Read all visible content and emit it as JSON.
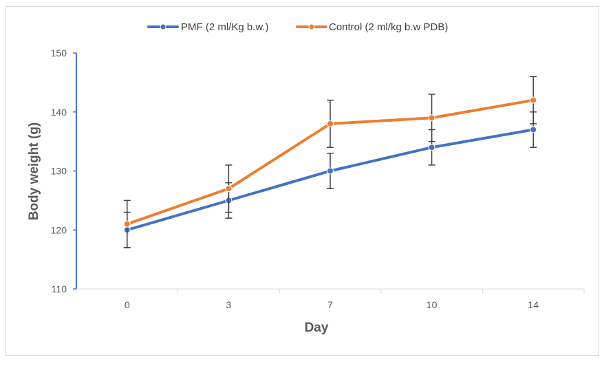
{
  "chart_data": {
    "type": "line",
    "title": "",
    "xlabel": "Day",
    "ylabel": "Body weight (g)",
    "categories": [
      "0",
      "3",
      "7",
      "10",
      "14"
    ],
    "ylim": [
      110,
      150
    ],
    "yticks": [
      "110",
      "120",
      "130",
      "140",
      "150"
    ],
    "grid": false,
    "legend_position": "top",
    "series": [
      {
        "name": "PMF (2 ml/Kg b.w.)",
        "color": "#4472c4",
        "values": [
          120,
          125,
          130,
          134,
          137
        ],
        "errors": [
          3,
          3,
          3,
          3,
          3
        ]
      },
      {
        "name": "Control (2 ml/kg b.w PDB)",
        "color": "#ed7d31",
        "values": [
          121,
          127,
          138,
          139,
          142
        ],
        "errors": [
          4,
          4,
          4,
          4,
          4
        ]
      }
    ]
  }
}
